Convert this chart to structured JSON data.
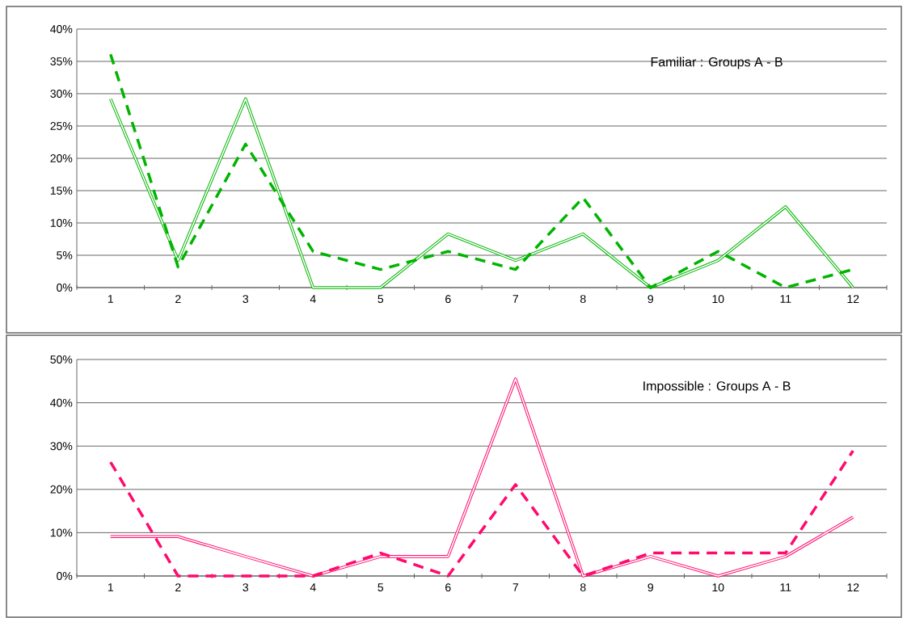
{
  "chart_data": [
    {
      "type": "line",
      "title": "Familiar : Groups A - B",
      "categories": [
        "1",
        "2",
        "3",
        "4",
        "5",
        "6",
        "7",
        "8",
        "9",
        "10",
        "11",
        "12"
      ],
      "series": [
        {
          "color": "#00b400",
          "line_style": "solid",
          "values": [
            29.2,
            4.2,
            29.2,
            0,
            0,
            8.3,
            4.2,
            8.3,
            0,
            4.2,
            12.5,
            0
          ]
        },
        {
          "color": "#00b400",
          "line_style": "dashed",
          "values": [
            36.1,
            3.2,
            22.2,
            5.6,
            2.8,
            5.6,
            2.8,
            13.9,
            0,
            5.6,
            0,
            2.8
          ]
        }
      ],
      "ylim": [
        0,
        40
      ],
      "yticks": [
        {
          "value": 0,
          "label": "0%"
        },
        {
          "value": 5,
          "label": "5%"
        },
        {
          "value": 10,
          "label": "10%"
        },
        {
          "value": 15,
          "label": "15%"
        },
        {
          "value": 20,
          "label": "20%"
        },
        {
          "value": 25,
          "label": "25%"
        },
        {
          "value": 30,
          "label": "30%"
        },
        {
          "value": 35,
          "label": "35%"
        },
        {
          "value": 40,
          "label": "40%"
        }
      ],
      "grid": "y",
      "marker": "none"
    },
    {
      "type": "line",
      "title": "Impossible : Groups A - B",
      "categories": [
        "1",
        "2",
        "3",
        "4",
        "5",
        "6",
        "7",
        "8",
        "9",
        "10",
        "11",
        "12"
      ],
      "series": [
        {
          "color": "#ff0a6e",
          "line_style": "solid",
          "values": [
            9.1,
            9.1,
            4.5,
            0,
            4.5,
            4.5,
            45.5,
            0,
            4.5,
            0,
            4.5,
            13.6
          ]
        },
        {
          "color": "#ff0a6e",
          "line_style": "dashed",
          "values": [
            26.3,
            0,
            0,
            0,
            5.3,
            0,
            21.1,
            0,
            5.3,
            5.3,
            5.3,
            28.9
          ]
        }
      ],
      "ylim": [
        0,
        50
      ],
      "yticks": [
        {
          "value": 0,
          "label": "0%"
        },
        {
          "value": 10,
          "label": "10%"
        },
        {
          "value": 20,
          "label": "20%"
        },
        {
          "value": 30,
          "label": "30%"
        },
        {
          "value": 40,
          "label": "40%"
        },
        {
          "value": 50,
          "label": "50%"
        }
      ],
      "grid": "y",
      "marker": "none"
    }
  ]
}
